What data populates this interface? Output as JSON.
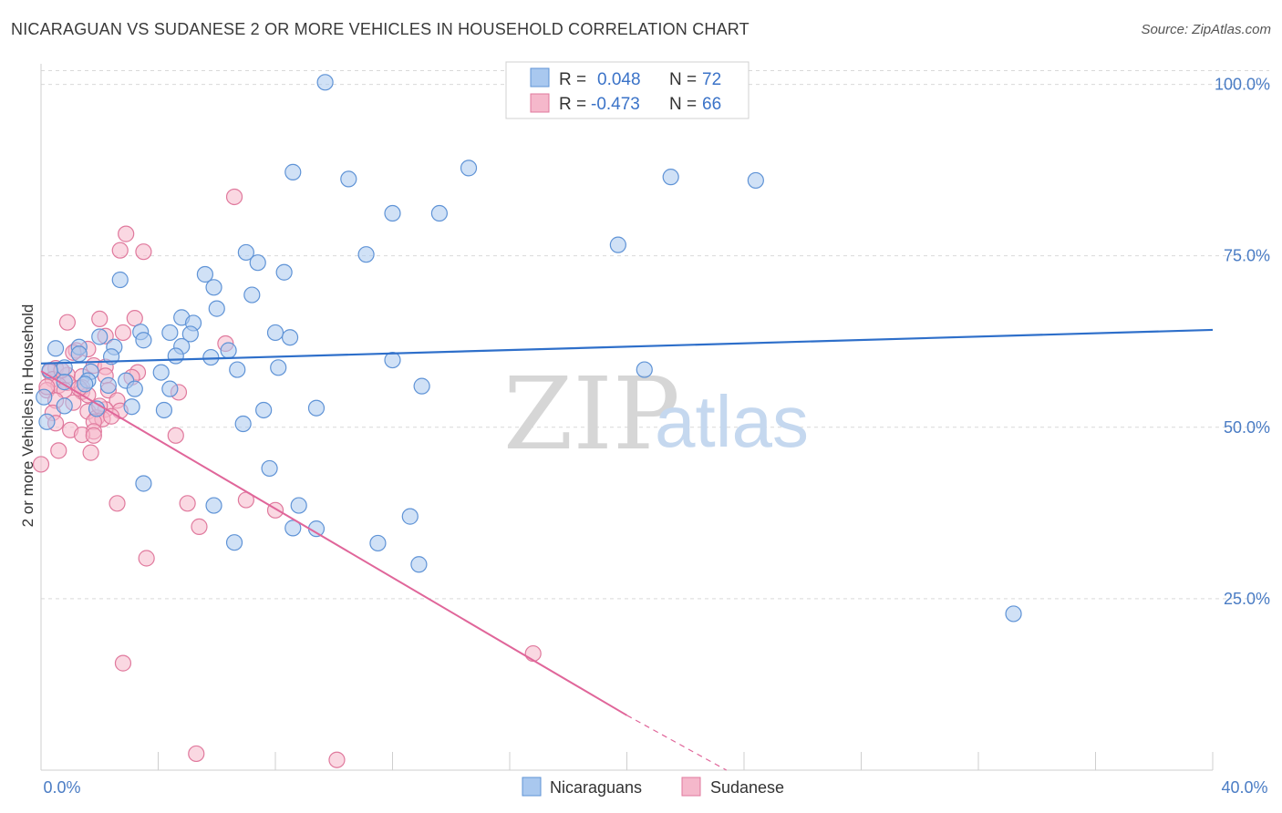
{
  "header": {
    "title": "NICARAGUAN VS SUDANESE 2 OR MORE VEHICLES IN HOUSEHOLD CORRELATION CHART",
    "source": "Source: ZipAtlas.com"
  },
  "legend": {
    "rows": [
      {
        "r_label": "R =",
        "r_value": "0.048",
        "n_label": "N =",
        "n_value": "72"
      },
      {
        "r_label": "R =",
        "r_value": "-0.473",
        "n_label": "N =",
        "n_value": "66"
      }
    ]
  },
  "bottom_legend": [
    "Nicaraguans",
    "Sudanese"
  ],
  "watermark": {
    "zip": "ZIP",
    "atlas": "atlas"
  },
  "colors": {
    "blue_fill": "#a9c8ef",
    "blue_stroke": "#5f93d6",
    "blue_line": "#2e6fca",
    "pink_fill": "#f5b8cb",
    "pink_stroke": "#e0799d",
    "pink_line": "#e0669a",
    "grid": "#d9d9d9",
    "tick_text": "#4a7cc4"
  },
  "chart_data": {
    "type": "scatter",
    "title": "NICARAGUAN VS SUDANESE 2 OR MORE VEHICLES IN HOUSEHOLD CORRELATION CHART",
    "xlabel": "",
    "ylabel": "2 or more Vehicles in Household",
    "xlim": [
      0,
      40
    ],
    "ylim": [
      0,
      103
    ],
    "x_tick_labels": [
      "0.0%",
      "40.0%"
    ],
    "y_ticks": [
      25,
      50,
      75,
      100
    ],
    "y_tick_labels": [
      "25.0%",
      "50.0%",
      "75.0%",
      "100.0%"
    ],
    "grid": true,
    "legend_position": "top-center",
    "series": [
      {
        "name": "Nicaraguans",
        "color": "#a9c8ef",
        "points": [
          [
            9.7,
            100.3
          ],
          [
            14.6,
            87.8
          ],
          [
            8.6,
            87.2
          ],
          [
            10.5,
            86.2
          ],
          [
            21.5,
            86.5
          ],
          [
            24.4,
            86
          ],
          [
            12,
            81.2
          ],
          [
            13.6,
            81.2
          ],
          [
            19.7,
            76.6
          ],
          [
            11.1,
            75.2
          ],
          [
            7,
            75.5
          ],
          [
            7.4,
            74
          ],
          [
            8.3,
            72.6
          ],
          [
            5.6,
            72.3
          ],
          [
            2.7,
            71.5
          ],
          [
            5.9,
            70.4
          ],
          [
            7.2,
            69.3
          ],
          [
            6,
            67.3
          ],
          [
            4.8,
            66
          ],
          [
            5.2,
            65.2
          ],
          [
            3.4,
            63.9
          ],
          [
            4.4,
            63.8
          ],
          [
            5.1,
            63.6
          ],
          [
            8,
            63.8
          ],
          [
            8.5,
            63.1
          ],
          [
            2,
            63.2
          ],
          [
            3.5,
            62.7
          ],
          [
            1.3,
            61.7
          ],
          [
            0.5,
            61.5
          ],
          [
            4.8,
            61.8
          ],
          [
            6.4,
            61.2
          ],
          [
            2.5,
            61.7
          ],
          [
            1.3,
            60.7
          ],
          [
            2.4,
            60.3
          ],
          [
            4.6,
            60.4
          ],
          [
            5.8,
            60.2
          ],
          [
            12,
            59.8
          ],
          [
            0.8,
            58.7
          ],
          [
            0.3,
            58.3
          ],
          [
            1.7,
            58.1
          ],
          [
            6.7,
            58.4
          ],
          [
            4.1,
            58
          ],
          [
            8.1,
            58.7
          ],
          [
            20.6,
            58.4
          ],
          [
            1.6,
            56.8
          ],
          [
            2.9,
            56.8
          ],
          [
            1.5,
            56.3
          ],
          [
            0.8,
            56.6
          ],
          [
            2.3,
            56.1
          ],
          [
            13,
            56
          ],
          [
            3.2,
            55.6
          ],
          [
            4.4,
            55.6
          ],
          [
            0.8,
            53.1
          ],
          [
            3.1,
            53
          ],
          [
            1.9,
            52.7
          ],
          [
            4.2,
            52.5
          ],
          [
            9.4,
            52.8
          ],
          [
            7.6,
            52.5
          ],
          [
            6.9,
            50.5
          ],
          [
            0.2,
            50.8
          ],
          [
            7.8,
            44
          ],
          [
            3.5,
            41.8
          ],
          [
            5.9,
            38.6
          ],
          [
            8.8,
            38.6
          ],
          [
            12.6,
            37
          ],
          [
            8.6,
            35.3
          ],
          [
            9.4,
            35.2
          ],
          [
            6.6,
            33.2
          ],
          [
            11.5,
            33.1
          ],
          [
            12.9,
            30
          ],
          [
            33.2,
            22.8
          ],
          [
            0.1,
            54.4
          ]
        ]
      },
      {
        "name": "Sudanese",
        "color": "#f5b8cb",
        "points": [
          [
            6.6,
            83.6
          ],
          [
            2.9,
            78.2
          ],
          [
            2.7,
            75.8
          ],
          [
            3.5,
            75.6
          ],
          [
            0.9,
            65.3
          ],
          [
            2,
            65.8
          ],
          [
            3.2,
            65.9
          ],
          [
            2.8,
            63.8
          ],
          [
            2.2,
            63.3
          ],
          [
            6.3,
            62.2
          ],
          [
            1.2,
            61.2
          ],
          [
            1.6,
            61.4
          ],
          [
            1.1,
            60.9
          ],
          [
            0.5,
            58.6
          ],
          [
            1.8,
            59
          ],
          [
            2.2,
            58.8
          ],
          [
            3.3,
            58
          ],
          [
            0.3,
            58.1
          ],
          [
            0.9,
            57.6
          ],
          [
            1.4,
            57.4
          ],
          [
            0.4,
            57
          ],
          [
            0.9,
            56.5
          ],
          [
            2.2,
            57.5
          ],
          [
            3.1,
            57.3
          ],
          [
            0.6,
            56.1
          ],
          [
            1.4,
            55.8
          ],
          [
            0.2,
            55.4
          ],
          [
            0.8,
            55.4
          ],
          [
            1.4,
            55.2
          ],
          [
            2.3,
            55.4
          ],
          [
            4.7,
            55.1
          ],
          [
            1.6,
            54.7
          ],
          [
            0.5,
            53.9
          ],
          [
            1.1,
            53.6
          ],
          [
            2.6,
            53.9
          ],
          [
            2.2,
            52.6
          ],
          [
            1.6,
            52.3
          ],
          [
            2.7,
            52.4
          ],
          [
            1.9,
            51.4
          ],
          [
            0.4,
            52.1
          ],
          [
            2.1,
            51.2
          ],
          [
            1.8,
            50.8
          ],
          [
            0.5,
            50.6
          ],
          [
            1,
            49.6
          ],
          [
            1.8,
            49.4
          ],
          [
            1.4,
            48.9
          ],
          [
            1.8,
            48.8
          ],
          [
            4.6,
            48.8
          ],
          [
            0.6,
            46.6
          ],
          [
            1.7,
            46.3
          ],
          [
            0,
            44.6
          ],
          [
            2.6,
            38.9
          ],
          [
            5,
            38.9
          ],
          [
            7,
            39.4
          ],
          [
            8,
            37.9
          ],
          [
            5.4,
            35.5
          ],
          [
            3.6,
            30.9
          ],
          [
            16.8,
            17
          ],
          [
            2.8,
            15.6
          ],
          [
            5.3,
            2.4
          ],
          [
            10.1,
            1.5
          ],
          [
            0.2,
            55.9
          ],
          [
            1.3,
            55.7
          ],
          [
            2,
            53.1
          ],
          [
            0.7,
            58.3
          ],
          [
            2.4,
            51.6
          ]
        ]
      }
    ],
    "trendlines": [
      {
        "series": "Nicaraguans",
        "x": [
          0,
          40
        ],
        "y": [
          59.3,
          64.2
        ],
        "style": "solid"
      },
      {
        "series": "Sudanese",
        "x": [
          0,
          20
        ],
        "y": [
          58.2,
          8
        ],
        "style": "solid"
      },
      {
        "series": "Sudanese",
        "x": [
          20,
          23.4
        ],
        "y": [
          8,
          0
        ],
        "style": "dashed"
      }
    ]
  }
}
